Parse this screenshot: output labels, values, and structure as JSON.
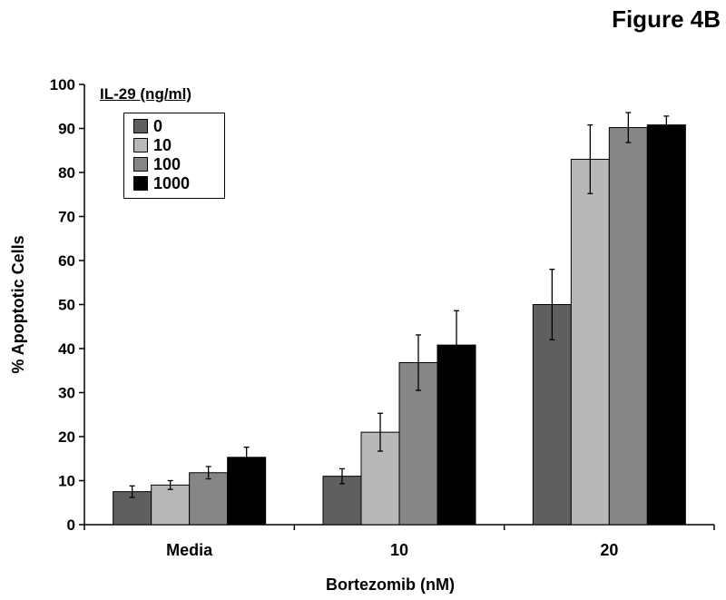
{
  "figure_label": "Figure 4B",
  "chart_data": {
    "type": "bar",
    "title": "",
    "xlabel": "Bortezomib (nM)",
    "ylabel": "% Apoptotic Cells",
    "ylim": [
      0,
      100
    ],
    "yticks": [
      0,
      10,
      20,
      30,
      40,
      50,
      60,
      70,
      80,
      90,
      100
    ],
    "categories": [
      "Media",
      "10",
      "20"
    ],
    "legend_title": "IL-29 (ng/ml)",
    "legend_position": "top-left",
    "grid": false,
    "series": [
      {
        "name": "0",
        "color": "#5f5f5f",
        "values": [
          7.5,
          11.0,
          50.0
        ],
        "errors": [
          1.3,
          1.7,
          8.0
        ]
      },
      {
        "name": "10",
        "color": "#b8b8b8",
        "values": [
          9.0,
          21.0,
          83.0
        ],
        "errors": [
          1.0,
          4.3,
          7.8
        ]
      },
      {
        "name": "100",
        "color": "#868686",
        "values": [
          11.8,
          36.8,
          90.2
        ],
        "errors": [
          1.4,
          6.3,
          3.4
        ]
      },
      {
        "name": "1000",
        "color": "#000000",
        "values": [
          15.3,
          40.8,
          90.8
        ],
        "errors": [
          2.3,
          7.8,
          2.0
        ]
      }
    ]
  }
}
